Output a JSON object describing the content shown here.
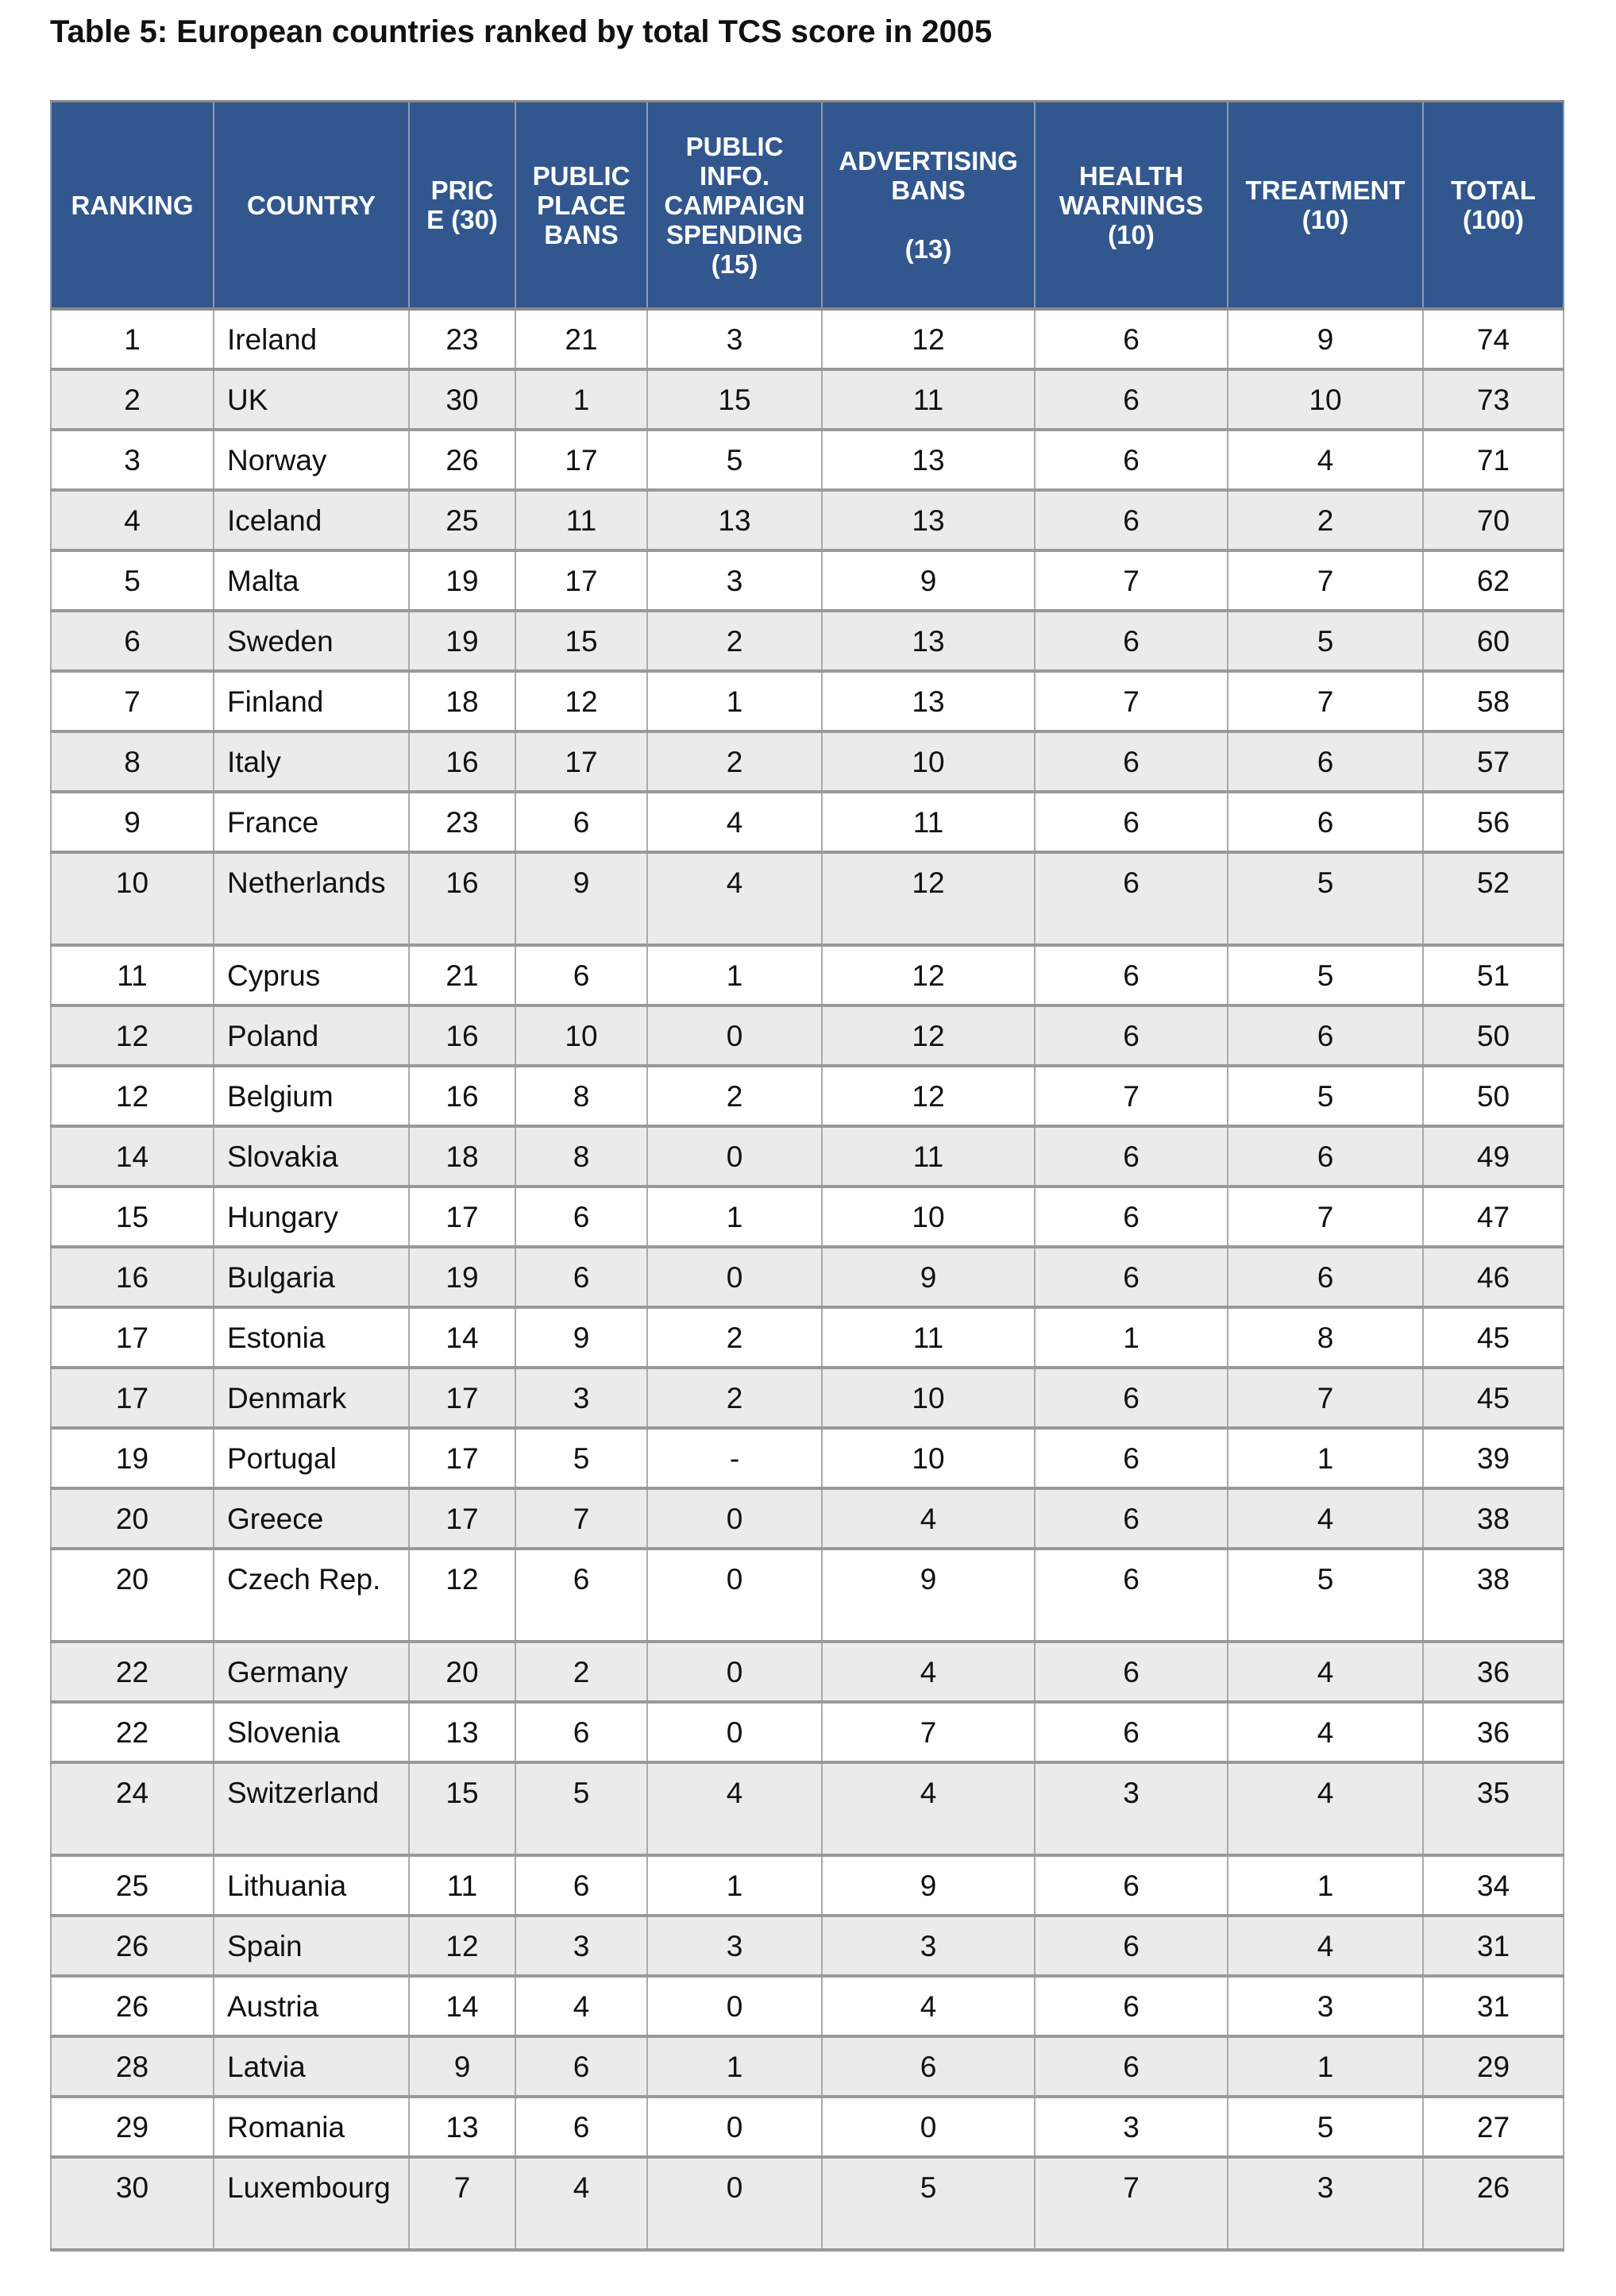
{
  "title": "Table 5: European countries ranked by total TCS score in 2005",
  "colors": {
    "header_bg": "#32578e",
    "header_text": "#ffffff",
    "alt_row": "#ebebeb"
  },
  "columns": [
    [
      "RANKING"
    ],
    [
      "COUNTRY"
    ],
    [
      "PRIC",
      "E (30)"
    ],
    [
      "PUBLIC",
      "PLACE",
      "BANS"
    ],
    [
      "PUBLIC",
      "INFO.",
      "CAMPAIGN",
      "SPENDING",
      "(15)"
    ],
    [
      "ADVERTISING",
      "BANS",
      "",
      "(13)"
    ],
    [
      "HEALTH",
      "WARNINGS",
      "(10)"
    ],
    [
      "TREATMENT",
      "(10)"
    ],
    [
      "TOTAL",
      "(100)"
    ]
  ],
  "rows": [
    [
      "1",
      "Ireland",
      "23",
      "21",
      "3",
      "12",
      "6",
      "9",
      "74"
    ],
    [
      "2",
      "UK",
      "30",
      "1",
      "15",
      "11",
      "6",
      "10",
      "73"
    ],
    [
      "3",
      "Norway",
      "26",
      "17",
      "5",
      "13",
      "6",
      "4",
      "71"
    ],
    [
      "4",
      "Iceland",
      "25",
      "11",
      "13",
      "13",
      "6",
      "2",
      "70"
    ],
    [
      "5",
      "Malta",
      "19",
      "17",
      "3",
      "9",
      "7",
      "7",
      "62"
    ],
    [
      "6",
      "Sweden",
      "19",
      "15",
      "2",
      "13",
      "6",
      "5",
      "60"
    ],
    [
      "7",
      "Finland",
      "18",
      "12",
      "1",
      "13",
      "7",
      "7",
      "58"
    ],
    [
      "8",
      "Italy",
      "16",
      "17",
      "2",
      "10",
      "6",
      "6",
      "57"
    ],
    [
      "9",
      "France",
      "23",
      "6",
      "4",
      "11",
      "6",
      "6",
      "56"
    ],
    [
      "10",
      "Netherlands",
      "16",
      "9",
      "4",
      "12",
      "6",
      "5",
      "52"
    ],
    [
      "11",
      "Cyprus",
      "21",
      "6",
      "1",
      "12",
      "6",
      "5",
      "51"
    ],
    [
      "12",
      "Poland",
      "16",
      "10",
      "0",
      "12",
      "6",
      "6",
      "50"
    ],
    [
      "12",
      "Belgium",
      "16",
      "8",
      "2",
      "12",
      "7",
      "5",
      "50"
    ],
    [
      "14",
      "Slovakia",
      "18",
      "8",
      "0",
      "11",
      "6",
      "6",
      "49"
    ],
    [
      "15",
      "Hungary",
      "17",
      "6",
      "1",
      "10",
      "6",
      "7",
      "47"
    ],
    [
      "16",
      "Bulgaria",
      "19",
      "6",
      "0",
      "9",
      "6",
      "6",
      "46"
    ],
    [
      "17",
      "Estonia",
      "14",
      "9",
      "2",
      "11",
      "1",
      "8",
      "45"
    ],
    [
      "17",
      "Denmark",
      "17",
      "3",
      "2",
      "10",
      "6",
      "7",
      "45"
    ],
    [
      "19",
      "Portugal",
      "17",
      "5",
      "-",
      "10",
      "6",
      "1",
      "39"
    ],
    [
      "20",
      "Greece",
      "17",
      "7",
      "0",
      "4",
      "6",
      "4",
      "38"
    ],
    [
      "20",
      "Czech Rep.",
      "12",
      "6",
      "0",
      "9",
      "6",
      "5",
      "38"
    ],
    [
      "22",
      "Germany",
      "20",
      "2",
      "0",
      "4",
      "6",
      "4",
      "36"
    ],
    [
      "22",
      "Slovenia",
      "13",
      "6",
      "0",
      "7",
      "6",
      "4",
      "36"
    ],
    [
      "24",
      "Switzerland",
      "15",
      "5",
      "4",
      "4",
      "3",
      "4",
      "35"
    ],
    [
      "25",
      "Lithuania",
      "11",
      "6",
      "1",
      "9",
      "6",
      "1",
      "34"
    ],
    [
      "26",
      "Spain",
      "12",
      "3",
      "3",
      "3",
      "6",
      "4",
      "31"
    ],
    [
      "26",
      "Austria",
      "14",
      "4",
      "0",
      "4",
      "6",
      "3",
      "31"
    ],
    [
      "28",
      "Latvia",
      "9",
      "6",
      "1",
      "6",
      "6",
      "1",
      "29"
    ],
    [
      "29",
      "Romania",
      "13",
      "6",
      "0",
      "0",
      "3",
      "5",
      "27"
    ],
    [
      "30",
      "Luxembourg",
      "7",
      "4",
      "0",
      "5",
      "7",
      "3",
      "26"
    ]
  ]
}
